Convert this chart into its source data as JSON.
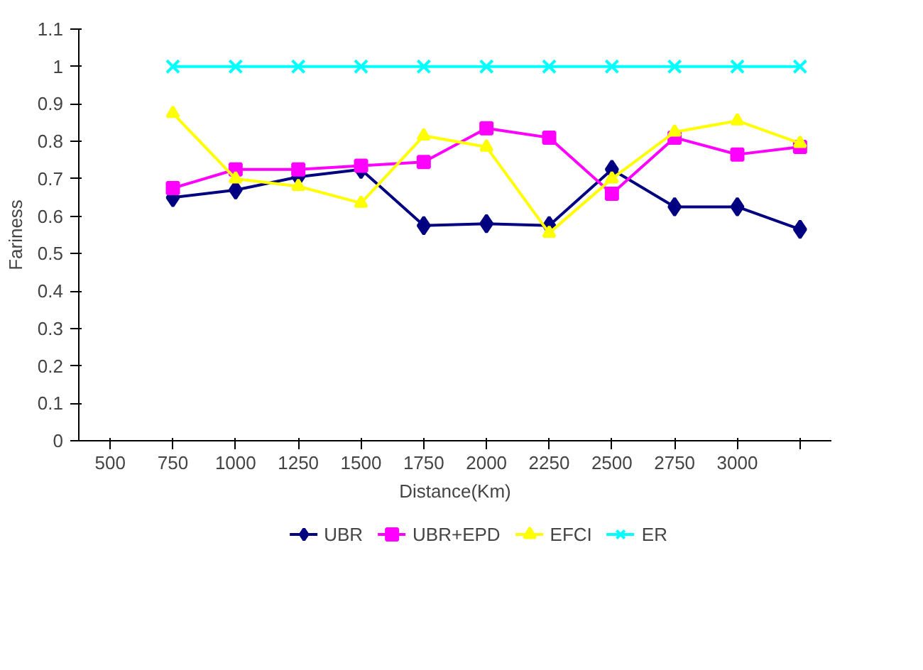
{
  "chart_data": {
    "type": "line",
    "xlabel": "Distance(Km)",
    "ylabel": "Fariness",
    "categories": [
      "500",
      "750",
      "1000",
      "1250",
      "1500",
      "1750",
      "2000",
      "2250",
      "2500",
      "2750",
      "3000",
      null
    ],
    "ylim": [
      0,
      1.1
    ],
    "yticks": [
      0,
      0.1,
      0.2,
      0.3,
      0.4,
      0.5,
      0.6,
      0.7,
      0.8,
      0.9,
      1,
      1.1
    ],
    "grid": false,
    "legend": "bottom",
    "series": [
      {
        "name": "UBR",
        "color": "#000080",
        "marker": "diamond",
        "values": [
          null,
          0.65,
          0.67,
          0.705,
          0.725,
          0.575,
          0.58,
          0.575,
          0.725,
          0.625,
          0.625,
          0.565
        ]
      },
      {
        "name": "UBR+EPD",
        "color": "#ff00ff",
        "marker": "square",
        "values": [
          null,
          0.675,
          0.725,
          0.725,
          0.735,
          0.745,
          0.835,
          0.81,
          0.66,
          0.81,
          0.765,
          0.785
        ]
      },
      {
        "name": "EFCI",
        "color": "#ffff00",
        "marker": "triangle",
        "values": [
          null,
          0.875,
          0.7,
          0.68,
          0.635,
          0.815,
          0.785,
          0.555,
          0.7,
          0.825,
          0.855,
          0.795
        ]
      },
      {
        "name": "ER",
        "color": "#00ffff",
        "marker": "x",
        "values": [
          null,
          1,
          1,
          1,
          1,
          1,
          1,
          1,
          1,
          1,
          1,
          1
        ]
      }
    ]
  }
}
